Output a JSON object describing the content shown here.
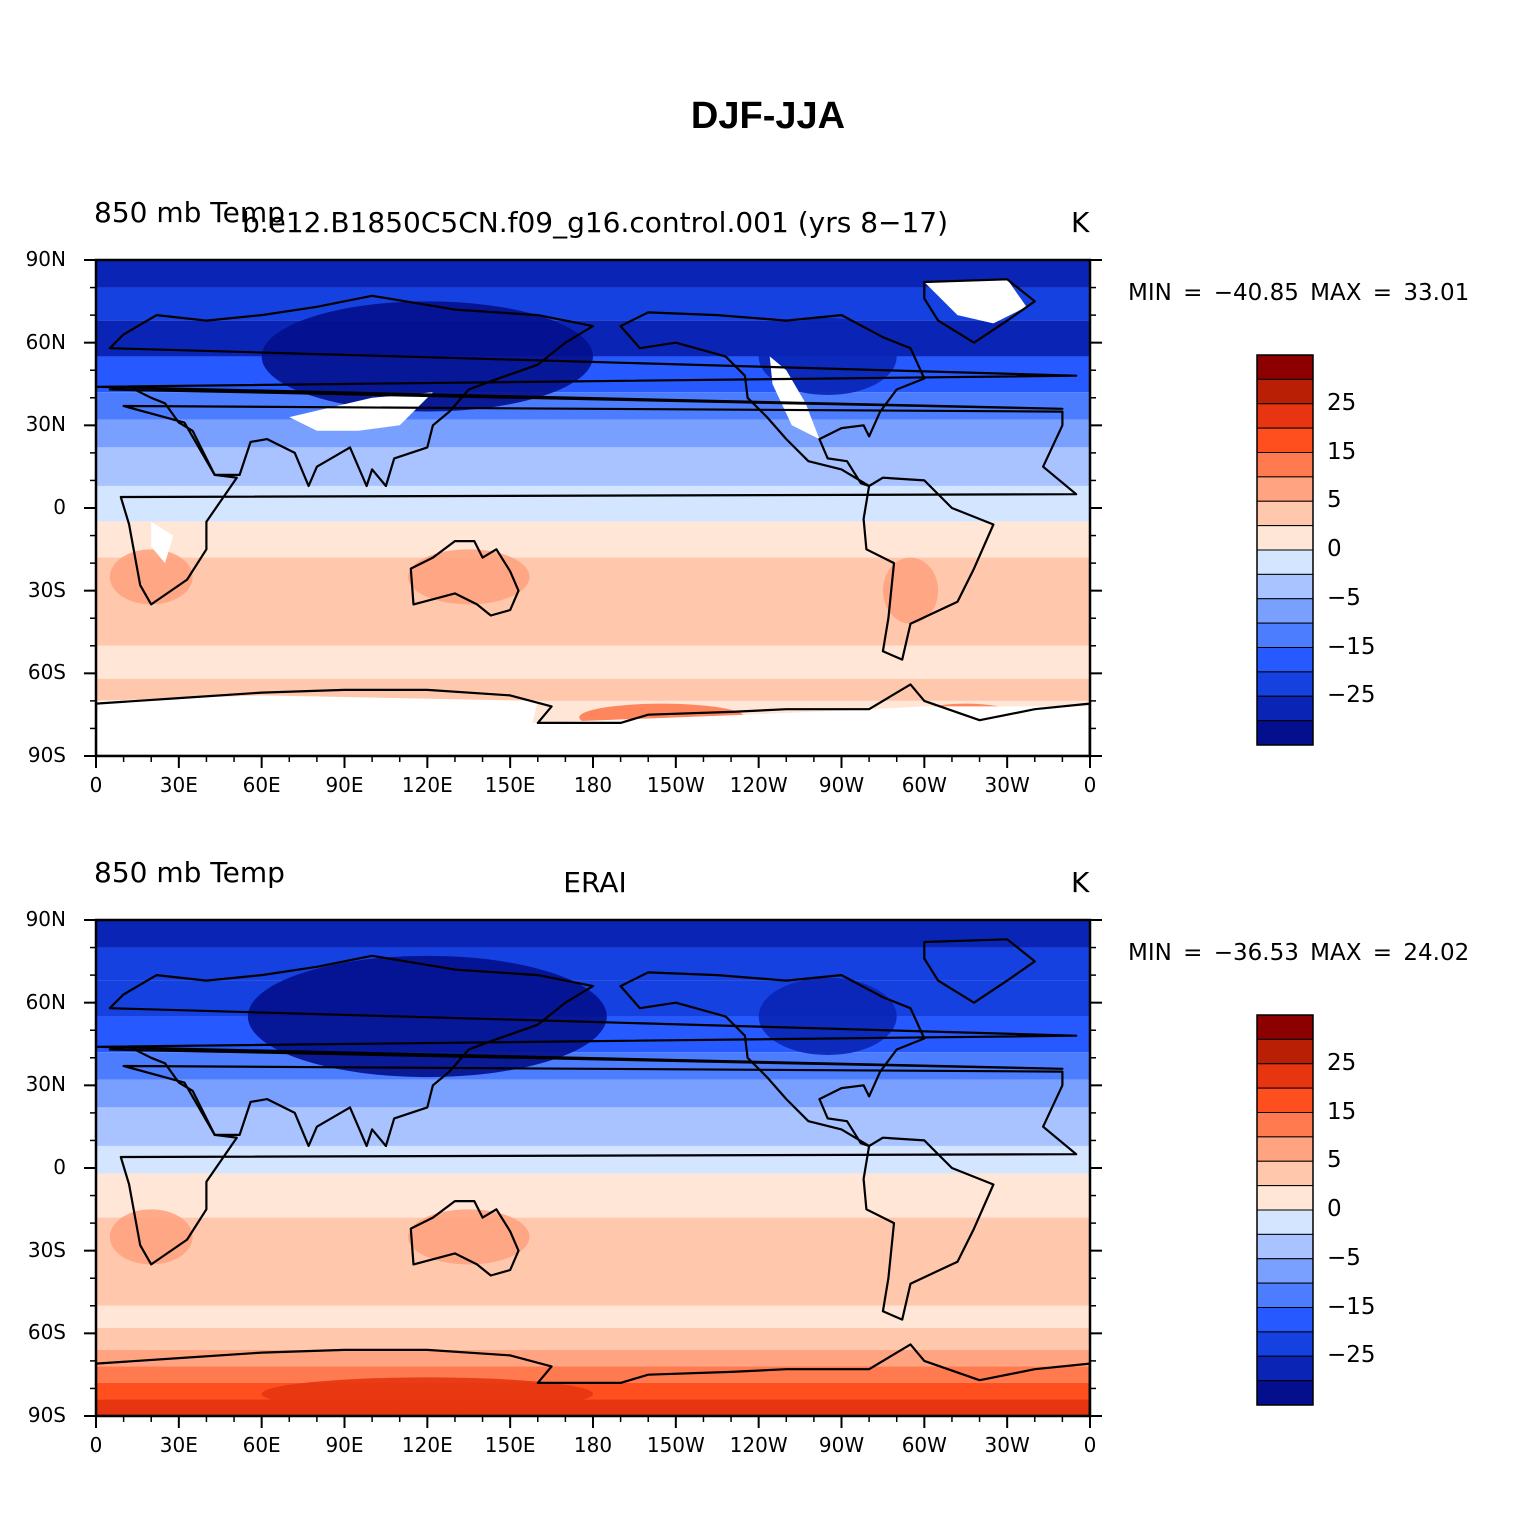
{
  "title": "DJF-JJA",
  "y_tick_labels": [
    "90N",
    "60N",
    "30N",
    "0",
    "30S",
    "60S",
    "90S"
  ],
  "x_tick_labels": [
    "0",
    "30E",
    "60E",
    "90E",
    "120E",
    "150E",
    "180",
    "150W",
    "120W",
    "90W",
    "60W",
    "30W",
    "0"
  ],
  "colorbar": {
    "levels": [
      -35,
      -30,
      -25,
      -20,
      -15,
      -10,
      -5,
      0,
      5,
      10,
      15,
      20,
      25,
      30,
      35
    ],
    "colors": [
      "#030f8c",
      "#0a25b5",
      "#1541e0",
      "#2659ff",
      "#4d7dff",
      "#7aa0ff",
      "#a8c3ff",
      "#d4e6ff",
      "#ffe6d6",
      "#ffc8ad",
      "#ffa381",
      "#ff7a4f",
      "#ff4f1f",
      "#e63510",
      "#b81f05",
      "#8c0000"
    ],
    "tick_labels": [
      "25",
      "15",
      "5",
      "0",
      "−5",
      "−15",
      "−25"
    ]
  },
  "panels": [
    {
      "left_label": "850 mb Temp",
      "center_label": "b.e12.B1850C5CN.f09_g16.control.001 (yrs 8−17)",
      "right_label": "K",
      "minmax_text": "MIN = −40.85 MAX =   33.01",
      "min": -40.85,
      "max": 33.01
    },
    {
      "left_label": "850 mb Temp",
      "center_label": "ERAI",
      "right_label": "K",
      "minmax_text": "MIN = −36.53 MAX =   24.02",
      "min": -36.53,
      "max": 24.02
    }
  ]
}
